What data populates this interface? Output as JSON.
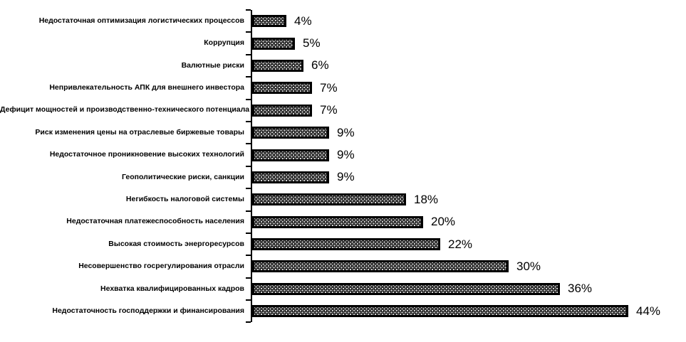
{
  "chart_data": {
    "type": "bar",
    "orientation": "horizontal",
    "title": "",
    "xlabel": "",
    "ylabel": "",
    "unit": "%",
    "xlim": [
      0,
      48
    ],
    "grid": false,
    "legend": false,
    "style": {
      "bar_fill_pattern": "dotted-weave",
      "bar_pattern_color": "#000000",
      "bar_background": "#ffffff",
      "bar_border_color": "#000000",
      "axis_color": "#000000",
      "background_color": "#ffffff",
      "text_color": "#000000"
    },
    "categories": [
      "Недостаточная оптимизация логистических процессов",
      "Коррупция",
      "Валютные риски",
      "Непривлекательность АПК для внешнего инвестора",
      "Дефицит мощностей и производственно-технического потенциала",
      "Риск изменения цены на отраслевые биржевые товары",
      "Недостаточное проникновение высоких технологий",
      "Геополитические риски, санкции",
      "Негибкость налоговой системы",
      "Недостаточная платежеспособность населения",
      "Высокая стоимость энергоресурсов",
      "Несовершенство госрегулирования отрасли",
      "Нехватка квалифицированных кадров",
      "Недостаточность господдержки и финансирования"
    ],
    "values": [
      4,
      5,
      6,
      7,
      7,
      9,
      9,
      9,
      18,
      20,
      22,
      30,
      36,
      44
    ],
    "value_labels": [
      "4%",
      "5%",
      "6%",
      "7%",
      "7%",
      "9%",
      "9%",
      "9%",
      "18%",
      "20%",
      "22%",
      "30%",
      "36%",
      "44%"
    ]
  }
}
